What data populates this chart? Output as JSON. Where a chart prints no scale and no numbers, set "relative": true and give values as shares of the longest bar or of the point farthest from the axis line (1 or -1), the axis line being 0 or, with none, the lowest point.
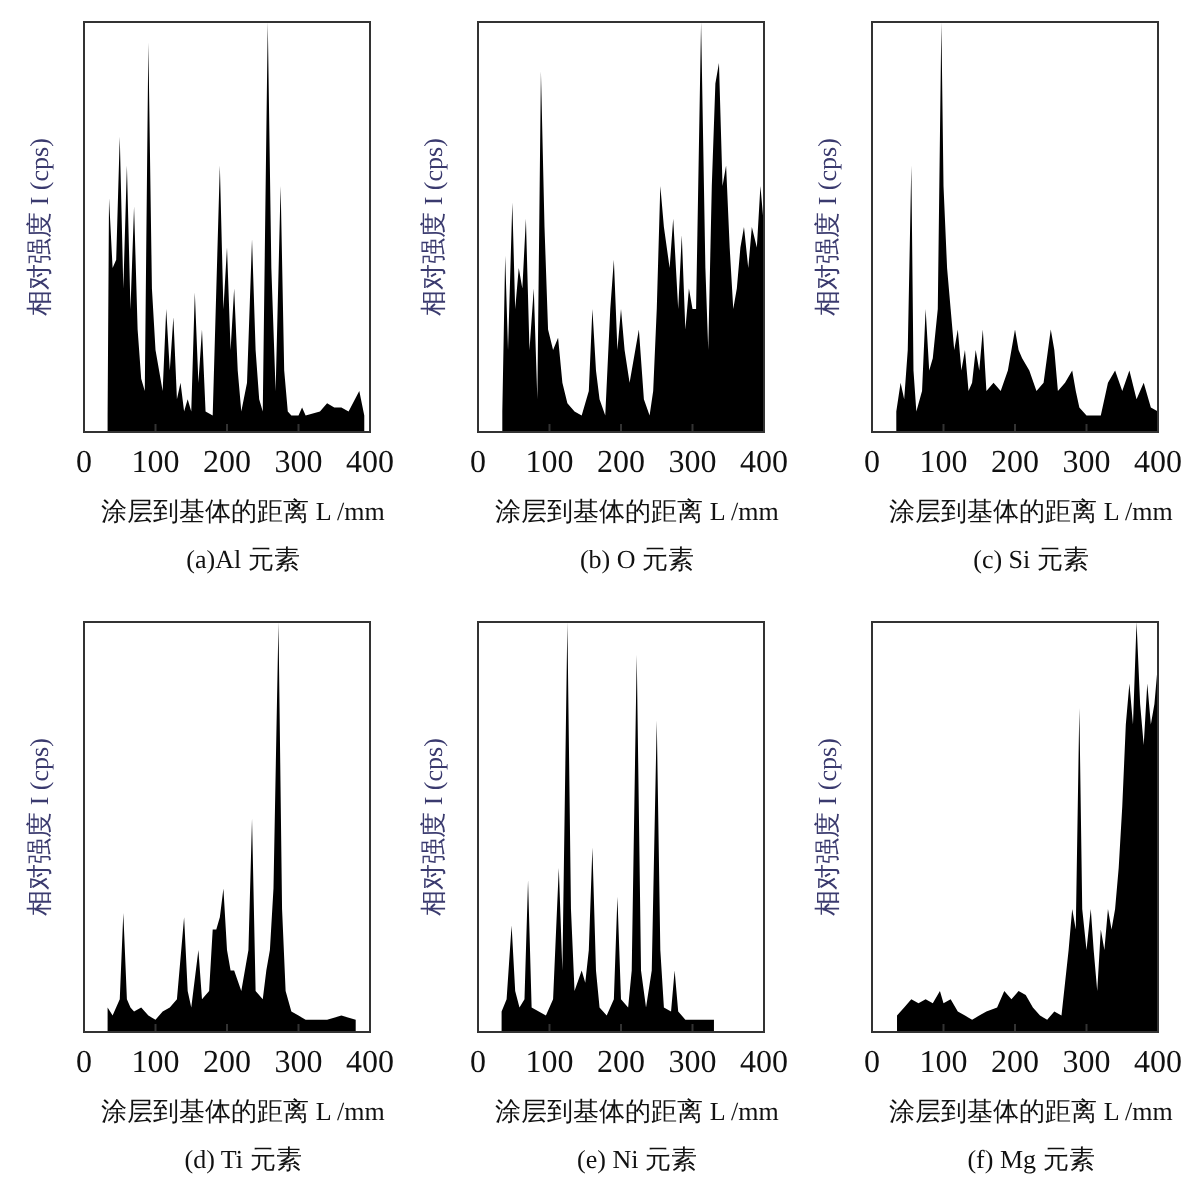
{
  "chart_data": [
    {
      "type": "area",
      "title": "(a)Al 元素",
      "xlabel": "涂层到基体的距离 L /mm",
      "ylabel": "相对强度 I (cps)",
      "relative": true,
      "color": "#000000",
      "xlim": [
        0,
        400
      ],
      "xticks": [
        0,
        100,
        200,
        300,
        400
      ],
      "tick_labels": "x",
      "x": [
        33,
        35,
        40,
        45,
        50,
        55,
        60,
        65,
        70,
        75,
        80,
        85,
        90,
        95,
        100,
        110,
        115,
        120,
        125,
        130,
        135,
        140,
        145,
        150,
        155,
        160,
        165,
        170,
        180,
        190,
        195,
        200,
        205,
        210,
        215,
        220,
        228,
        235,
        240,
        245,
        250,
        257,
        262,
        268,
        275,
        280,
        285,
        290,
        300,
        305,
        310,
        330,
        340,
        350,
        360,
        370,
        385,
        392
      ],
      "values": [
        0.04,
        0.57,
        0.4,
        0.42,
        0.72,
        0.35,
        0.65,
        0.3,
        0.55,
        0.25,
        0.13,
        0.1,
        0.95,
        0.35,
        0.2,
        0.1,
        0.3,
        0.15,
        0.28,
        0.08,
        0.12,
        0.05,
        0.08,
        0.05,
        0.34,
        0.12,
        0.25,
        0.05,
        0.04,
        0.65,
        0.3,
        0.45,
        0.2,
        0.35,
        0.15,
        0.05,
        0.12,
        0.47,
        0.2,
        0.08,
        0.05,
        1.0,
        0.4,
        0.1,
        0.6,
        0.15,
        0.05,
        0.04,
        0.04,
        0.06,
        0.04,
        0.05,
        0.07,
        0.06,
        0.06,
        0.05,
        0.1,
        0.04
      ]
    },
    {
      "type": "area",
      "title": "(b) O 元素",
      "xlabel": "涂层到基体的距离 L /mm",
      "ylabel": "相对强度 I (cps)",
      "relative": true,
      "color": "#000000",
      "xlim": [
        0,
        400
      ],
      "xticks": [
        0,
        100,
        200,
        300,
        400
      ],
      "tick_labels": "x",
      "x": [
        34,
        38,
        42,
        48,
        52,
        57,
        62,
        67,
        72,
        78,
        83,
        88,
        93,
        98,
        105,
        112,
        118,
        125,
        135,
        145,
        155,
        160,
        165,
        170,
        178,
        185,
        190,
        195,
        200,
        205,
        212,
        220,
        225,
        232,
        240,
        245,
        250,
        255,
        260,
        268,
        273,
        280,
        285,
        290,
        295,
        300,
        305,
        312,
        318,
        322,
        327,
        332,
        337,
        342,
        347,
        352,
        357,
        362,
        367,
        372,
        378,
        383,
        390,
        395,
        400
      ],
      "values": [
        0.05,
        0.43,
        0.2,
        0.56,
        0.3,
        0.4,
        0.35,
        0.52,
        0.2,
        0.35,
        0.08,
        0.88,
        0.5,
        0.25,
        0.2,
        0.23,
        0.12,
        0.07,
        0.05,
        0.04,
        0.1,
        0.3,
        0.15,
        0.08,
        0.04,
        0.3,
        0.42,
        0.2,
        0.3,
        0.2,
        0.12,
        0.2,
        0.25,
        0.08,
        0.04,
        0.1,
        0.3,
        0.6,
        0.5,
        0.4,
        0.52,
        0.3,
        0.48,
        0.25,
        0.35,
        0.3,
        0.3,
        1.0,
        0.4,
        0.2,
        0.6,
        0.85,
        0.9,
        0.6,
        0.65,
        0.45,
        0.3,
        0.35,
        0.45,
        0.5,
        0.4,
        0.5,
        0.45,
        0.6,
        0.5
      ]
    },
    {
      "type": "area",
      "title": "(c) Si 元素",
      "xlabel": "涂层到基体的距离 L /mm",
      "ylabel": "相对强度 I (cps)",
      "relative": true,
      "color": "#000000",
      "xlim": [
        0,
        400
      ],
      "xticks": [
        0,
        100,
        200,
        300,
        400
      ],
      "tick_labels": "x",
      "x": [
        34,
        40,
        45,
        50,
        55,
        58,
        62,
        70,
        75,
        80,
        85,
        92,
        97,
        100,
        105,
        110,
        115,
        120,
        125,
        130,
        135,
        140,
        145,
        150,
        155,
        160,
        170,
        180,
        190,
        200,
        205,
        210,
        220,
        230,
        240,
        250,
        255,
        260,
        270,
        280,
        285,
        290,
        300,
        320,
        330,
        340,
        350,
        360,
        370,
        380,
        390,
        400
      ],
      "values": [
        0.05,
        0.12,
        0.08,
        0.2,
        0.65,
        0.15,
        0.05,
        0.1,
        0.3,
        0.15,
        0.18,
        0.3,
        1.0,
        0.6,
        0.4,
        0.3,
        0.2,
        0.25,
        0.15,
        0.2,
        0.1,
        0.12,
        0.2,
        0.15,
        0.25,
        0.1,
        0.12,
        0.1,
        0.15,
        0.25,
        0.2,
        0.18,
        0.15,
        0.1,
        0.12,
        0.25,
        0.2,
        0.1,
        0.12,
        0.15,
        0.1,
        0.06,
        0.04,
        0.04,
        0.12,
        0.15,
        0.1,
        0.15,
        0.08,
        0.12,
        0.06,
        0.05
      ]
    },
    {
      "type": "area",
      "title": "(d) Ti 元素",
      "xlabel": "涂层到基体的距离 L /mm",
      "ylabel": "相对强度 I (cps)",
      "relative": true,
      "color": "#000000",
      "xlim": [
        0,
        400
      ],
      "xticks": [
        0,
        100,
        200,
        300,
        400
      ],
      "tick_labels": "x",
      "x": [
        33,
        40,
        50,
        55,
        60,
        65,
        70,
        80,
        90,
        100,
        110,
        120,
        130,
        140,
        145,
        150,
        160,
        165,
        175,
        180,
        185,
        190,
        195,
        200,
        205,
        210,
        220,
        230,
        235,
        240,
        250,
        255,
        260,
        265,
        272,
        277,
        282,
        290,
        300,
        310,
        340,
        360,
        380
      ],
      "values": [
        0.06,
        0.04,
        0.08,
        0.29,
        0.08,
        0.06,
        0.05,
        0.06,
        0.04,
        0.03,
        0.05,
        0.06,
        0.08,
        0.28,
        0.1,
        0.06,
        0.2,
        0.08,
        0.1,
        0.25,
        0.25,
        0.28,
        0.35,
        0.2,
        0.15,
        0.15,
        0.1,
        0.2,
        0.52,
        0.1,
        0.08,
        0.15,
        0.2,
        0.35,
        1.0,
        0.3,
        0.1,
        0.05,
        0.04,
        0.03,
        0.03,
        0.04,
        0.03
      ]
    },
    {
      "type": "area",
      "title": "(e) Ni 元素",
      "xlabel": "涂层到基体的距离 L /mm",
      "ylabel": "相对强度 I (cps)",
      "relative": true,
      "color": "#000000",
      "xlim": [
        0,
        400
      ],
      "xticks": [
        0,
        100,
        200,
        300,
        400
      ],
      "tick_labels": "x",
      "x": [
        33,
        40,
        47,
        52,
        58,
        65,
        70,
        75,
        85,
        95,
        105,
        113,
        118,
        125,
        130,
        135,
        145,
        150,
        155,
        160,
        165,
        170,
        180,
        190,
        195,
        200,
        210,
        215,
        222,
        228,
        235,
        243,
        250,
        255,
        260,
        270,
        275,
        280,
        290,
        310,
        330
      ],
      "values": [
        0.05,
        0.08,
        0.26,
        0.1,
        0.06,
        0.08,
        0.37,
        0.06,
        0.05,
        0.04,
        0.08,
        0.4,
        0.15,
        1.0,
        0.3,
        0.1,
        0.15,
        0.12,
        0.2,
        0.45,
        0.15,
        0.06,
        0.04,
        0.08,
        0.33,
        0.08,
        0.06,
        0.15,
        0.92,
        0.15,
        0.06,
        0.15,
        0.76,
        0.2,
        0.06,
        0.05,
        0.15,
        0.05,
        0.03,
        0.03,
        0.03
      ]
    },
    {
      "type": "area",
      "title": "(f) Mg 元素",
      "xlabel": "涂层到基体的距离 L /mm",
      "ylabel": "相对强度 I (cps)",
      "relative": true,
      "color": "#000000",
      "xlim": [
        0,
        400
      ],
      "xticks": [
        0,
        100,
        200,
        300,
        400
      ],
      "tick_labels": "x",
      "x": [
        35,
        45,
        55,
        65,
        75,
        85,
        95,
        100,
        110,
        120,
        130,
        140,
        150,
        160,
        175,
        185,
        195,
        205,
        215,
        225,
        235,
        245,
        255,
        265,
        275,
        280,
        285,
        290,
        294,
        300,
        306,
        310,
        315,
        320,
        325,
        330,
        335,
        340,
        345,
        350,
        355,
        360,
        365,
        370,
        375,
        380,
        385,
        390,
        395,
        400
      ],
      "values": [
        0.04,
        0.06,
        0.08,
        0.07,
        0.08,
        0.07,
        0.1,
        0.07,
        0.08,
        0.05,
        0.04,
        0.03,
        0.04,
        0.05,
        0.06,
        0.1,
        0.08,
        0.1,
        0.09,
        0.06,
        0.04,
        0.03,
        0.05,
        0.04,
        0.2,
        0.3,
        0.25,
        0.79,
        0.3,
        0.2,
        0.3,
        0.2,
        0.1,
        0.25,
        0.2,
        0.3,
        0.25,
        0.3,
        0.4,
        0.55,
        0.75,
        0.85,
        0.75,
        1.0,
        0.8,
        0.7,
        0.85,
        0.75,
        0.8,
        0.9
      ]
    }
  ]
}
